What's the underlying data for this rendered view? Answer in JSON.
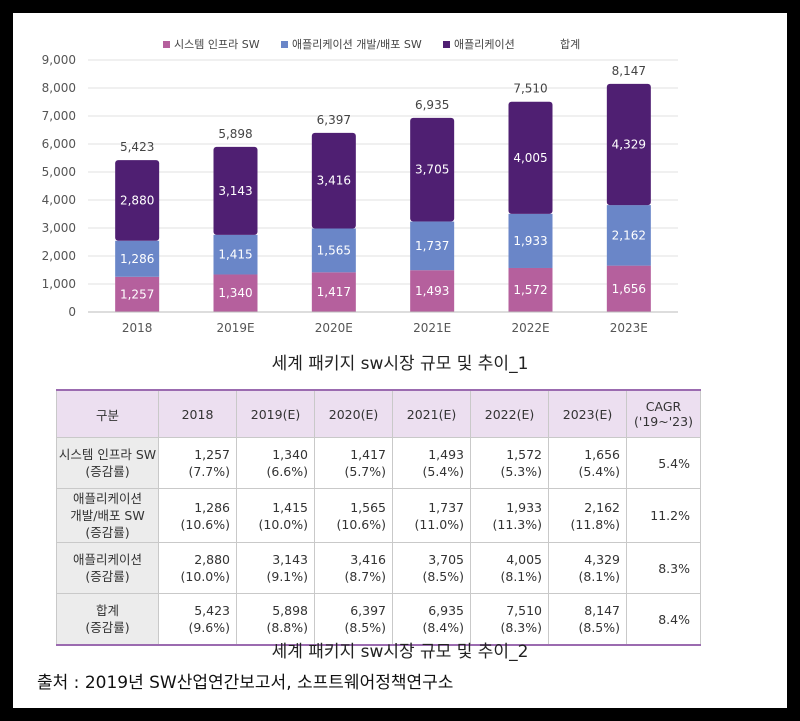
{
  "chart_data": {
    "type": "bar",
    "stacked": true,
    "categories": [
      "2018",
      "2019E",
      "2020E",
      "2021E",
      "2022E",
      "2023E"
    ],
    "series": [
      {
        "name": "시스템 인프라 SW",
        "color": "#b5609d",
        "values": [
          1257,
          1340,
          1417,
          1493,
          1572,
          1656
        ]
      },
      {
        "name": "애플리케이션 개발/배포 SW",
        "color": "#6a86c8",
        "values": [
          1286,
          1415,
          1565,
          1737,
          1933,
          2162
        ]
      },
      {
        "name": "애플리케이션",
        "color": "#4f1f72",
        "values": [
          2880,
          3143,
          3416,
          3705,
          4005,
          4329
        ]
      }
    ],
    "totals": {
      "name": "합계",
      "values": [
        5423,
        5898,
        6397,
        6935,
        7510,
        8147
      ]
    },
    "value_labels": {
      "series": [
        [
          "1,257",
          "1,340",
          "1,417",
          "1,493",
          "1,572",
          "1,656"
        ],
        [
          "1,286",
          "1,415",
          "1,565",
          "1,737",
          "1,933",
          "2,162"
        ],
        [
          "2,880",
          "3,143",
          "3,416",
          "3,705",
          "4,005",
          "4,329"
        ]
      ],
      "totals": [
        "5,423",
        "5,898",
        "6,397",
        "6,935",
        "7,510",
        "8,147"
      ]
    },
    "yticks": [
      0,
      1000,
      2000,
      3000,
      4000,
      5000,
      6000,
      7000,
      8000,
      9000
    ],
    "ytick_labels": [
      "0",
      "1,000",
      "2,000",
      "3,000",
      "4,000",
      "5,000",
      "6,000",
      "7,000",
      "8,000",
      "9,000"
    ],
    "ylim": [
      0,
      9000
    ],
    "grid": true,
    "legend_position": "top",
    "title": "",
    "xlabel": "",
    "ylabel": ""
  },
  "captions": {
    "chart": "세계 패키지 sw시장 규모 및 추이_1",
    "table": "세계 패키지 sw시장 규모 및 추이_2"
  },
  "table": {
    "headers": [
      "구분",
      "2018",
      "2019(E)",
      "2020(E)",
      "2021(E)",
      "2022(E)",
      "2023(E)",
      "CAGR\n('19~'23)"
    ],
    "rows": [
      {
        "label": "시스템 인프라 SW\n(증감률)",
        "cells": [
          "1,257\n(7.7%)",
          "1,340\n(6.6%)",
          "1,417\n(5.7%)",
          "1,493\n(5.4%)",
          "1,572\n(5.3%)",
          "1,656\n(5.4%)"
        ],
        "cagr": "5.4%"
      },
      {
        "label": "애플리케이션\n개발/배포 SW\n(증감률)",
        "cells": [
          "1,286\n(10.6%)",
          "1,415\n(10.0%)",
          "1,565\n(10.6%)",
          "1,737\n(11.0%)",
          "1,933\n(11.3%)",
          "2,162\n(11.8%)"
        ],
        "cagr": "11.2%"
      },
      {
        "label": "애플리케이션\n(증감률)",
        "cells": [
          "2,880\n(10.0%)",
          "3,143\n(9.1%)",
          "3,416\n(8.7%)",
          "3,705\n(8.5%)",
          "4,005\n(8.1%)",
          "4,329\n(8.1%)"
        ],
        "cagr": "8.3%"
      },
      {
        "label": "합계\n(증감률)",
        "cells": [
          "5,423\n(9.6%)",
          "5,898\n(8.8%)",
          "6,397\n(8.5%)",
          "6,935\n(8.4%)",
          "7,510\n(8.3%)",
          "8,147\n(8.5%)"
        ],
        "cagr": "8.4%"
      }
    ]
  },
  "source": "출처 : 2019년 SW산업연간보고서, 소프트웨어정책연구소"
}
